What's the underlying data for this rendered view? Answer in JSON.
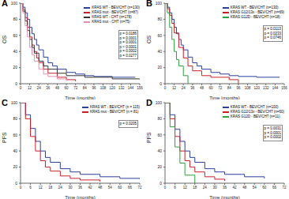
{
  "chart_data": [
    {
      "type": "line",
      "title": "A",
      "x_label": "Time (months)",
      "y_label": "OS",
      "line_style": "step",
      "legend": "upper right",
      "xlim": [
        0,
        156
      ],
      "xticks": [
        0,
        12,
        24,
        36,
        48,
        60,
        72,
        84,
        96,
        108,
        120,
        132,
        144,
        156
      ],
      "ylim": [
        0,
        100
      ],
      "yticks": [
        0,
        20,
        40,
        60,
        80,
        100
      ],
      "annotations": [
        "p = 0.0186",
        "p = 0.0001",
        "p = 0.0001",
        "p < 0.0001",
        "p = 0.0002",
        "p = 0.0277"
      ],
      "series": [
        {
          "name": "KRAS WT - BEV/CHT (n=130)",
          "color": "#2b3f9e",
          "x": [
            0,
            3,
            6,
            9,
            12,
            15,
            18,
            21,
            24,
            30,
            36,
            42,
            48,
            60,
            72,
            84,
            96,
            120,
            150
          ],
          "values": [
            100,
            95,
            88,
            80,
            70,
            62,
            55,
            48,
            42,
            33,
            26,
            22,
            18,
            14,
            12,
            10,
            9,
            8,
            8
          ]
        },
        {
          "name": "KRAS mut - BEV/CHT (n=87)",
          "color": "#c8202a",
          "x": [
            0,
            3,
            6,
            9,
            12,
            15,
            18,
            21,
            24,
            30,
            36,
            48,
            60,
            72
          ],
          "values": [
            100,
            92,
            82,
            70,
            58,
            48,
            40,
            32,
            26,
            18,
            13,
            8,
            5,
            3
          ]
        },
        {
          "name": "KRAS WT - CHT (n=178)",
          "color": "#333333",
          "x": [
            0,
            3,
            6,
            9,
            12,
            15,
            18,
            24,
            30,
            36,
            48,
            60,
            84,
            120,
            156
          ],
          "values": [
            100,
            90,
            78,
            66,
            55,
            45,
            38,
            28,
            22,
            18,
            13,
            10,
            8,
            6,
            6
          ]
        },
        {
          "name": "KRAS mut - CHT (n=75)",
          "color": "#e58fb0",
          "x": [
            0,
            3,
            6,
            9,
            12,
            15,
            18,
            24,
            30,
            36,
            48,
            60
          ],
          "values": [
            100,
            88,
            72,
            58,
            45,
            36,
            28,
            18,
            12,
            9,
            6,
            4
          ]
        }
      ]
    },
    {
      "type": "line",
      "title": "B",
      "x_label": "Time (months)",
      "y_label": "OS",
      "line_style": "step",
      "legend": "upper right",
      "xlim": [
        0,
        156
      ],
      "xticks": [
        0,
        12,
        24,
        36,
        48,
        60,
        72,
        84,
        96,
        108,
        120,
        132,
        144,
        156
      ],
      "ylim": [
        0,
        100
      ],
      "yticks": [
        0,
        20,
        40,
        60,
        80,
        100
      ],
      "annotations": [
        "p = 0.0113",
        "p = 0.0233",
        "p = 0.0746"
      ],
      "series": [
        {
          "name": "KRAS WT - BEV/CHT (n=130)",
          "color": "#2b3f9e",
          "x": [
            0,
            3,
            6,
            9,
            12,
            15,
            18,
            21,
            24,
            30,
            36,
            42,
            48,
            60,
            72,
            84,
            96,
            120,
            150
          ],
          "values": [
            100,
            95,
            88,
            80,
            70,
            62,
            55,
            48,
            42,
            33,
            26,
            22,
            18,
            14,
            12,
            10,
            9,
            8,
            8
          ]
        },
        {
          "name": "KRAS G12/13x - BEV/CHT (n=69)",
          "color": "#c8202a",
          "x": [
            0,
            3,
            6,
            9,
            12,
            18,
            24,
            30,
            36,
            48,
            60,
            84,
            96
          ],
          "values": [
            100,
            93,
            85,
            75,
            63,
            45,
            32,
            22,
            16,
            10,
            8,
            5,
            0
          ]
        },
        {
          "name": "KRAS G12D - BEV/CHT (n=18)",
          "color": "#2e9e3e",
          "x": [
            0,
            3,
            6,
            9,
            12,
            15,
            18,
            24,
            30
          ],
          "values": [
            100,
            88,
            70,
            55,
            40,
            30,
            22,
            10,
            0
          ]
        }
      ]
    },
    {
      "type": "line",
      "title": "C",
      "x_label": "Time (months)",
      "y_label": "PFS",
      "line_style": "step",
      "legend": "upper right",
      "xlim": [
        0,
        72
      ],
      "xticks": [
        0,
        6,
        12,
        18,
        24,
        30,
        36,
        42,
        48,
        54,
        60,
        66,
        72
      ],
      "ylim": [
        0,
        100
      ],
      "yticks": [
        0,
        20,
        40,
        60,
        80,
        100
      ],
      "annotations": [
        "p = 0.0205"
      ],
      "series": [
        {
          "name": "KRAS WT - BEV/CHT (n = 115)",
          "color": "#2b3f9e",
          "x": [
            0,
            3,
            6,
            9,
            12,
            15,
            18,
            24,
            30,
            36,
            48,
            60,
            72
          ],
          "values": [
            100,
            85,
            68,
            52,
            40,
            32,
            26,
            18,
            14,
            11,
            8,
            6,
            5
          ]
        },
        {
          "name": "KRAS mut - BEV/CHT (n = 81)",
          "color": "#c8202a",
          "x": [
            0,
            3,
            6,
            9,
            12,
            15,
            18,
            24,
            30,
            36,
            48
          ],
          "values": [
            100,
            80,
            58,
            40,
            28,
            20,
            15,
            9,
            6,
            4,
            2
          ]
        }
      ]
    },
    {
      "type": "line",
      "title": "D",
      "x_label": "Time (months)",
      "y_label": "PFS",
      "line_style": "step",
      "legend": "upper right",
      "xlim": [
        0,
        72
      ],
      "xticks": [
        0,
        6,
        12,
        18,
        24,
        30,
        36,
        42,
        48,
        54,
        60,
        66,
        72
      ],
      "ylim": [
        0,
        100
      ],
      "yticks": [
        0,
        20,
        40,
        60,
        80,
        100
      ],
      "annotations": [
        "p = 0.0031",
        "p = 0.0001",
        "p = 0.0002"
      ],
      "series": [
        {
          "name": "KRAS WT - BEV/CHT (n=100)",
          "color": "#2b3f9e",
          "x": [
            0,
            3,
            6,
            9,
            12,
            15,
            18,
            24,
            30,
            36,
            48,
            60
          ],
          "values": [
            100,
            85,
            67,
            52,
            40,
            32,
            26,
            18,
            14,
            11,
            8,
            6
          ]
        },
        {
          "name": "KRAS G12/13x - BEV/CHT (n=60)",
          "color": "#c8202a",
          "x": [
            0,
            3,
            6,
            9,
            12,
            15,
            18,
            24,
            30,
            36
          ],
          "values": [
            100,
            80,
            58,
            40,
            28,
            20,
            14,
            8,
            5,
            3
          ]
        },
        {
          "name": "KRAS G12D - BEV/CHT (n=11)",
          "color": "#2e9e3e",
          "x": [
            0,
            3,
            6,
            9,
            12,
            18
          ],
          "values": [
            100,
            70,
            45,
            25,
            10,
            0
          ]
        }
      ]
    }
  ]
}
